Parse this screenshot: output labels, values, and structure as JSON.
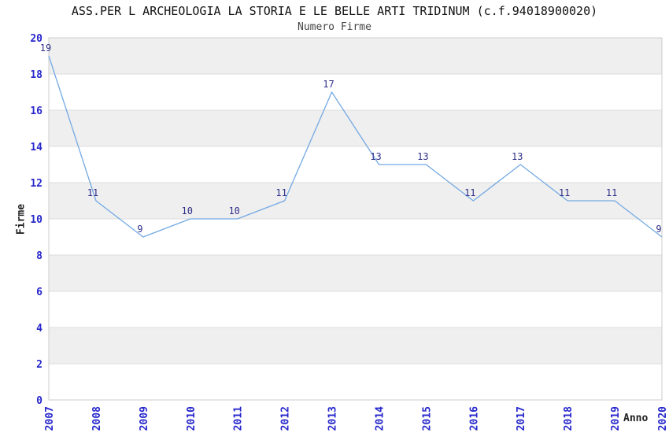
{
  "chart_data": {
    "type": "line",
    "title": "ASS.PER L ARCHEOLOGIA LA STORIA E LE BELLE ARTI TRIDINUM (c.f.94018900020)",
    "subtitle": "Numero Firme",
    "xlabel": "Anno",
    "ylabel": "Firme",
    "categories": [
      "2007",
      "2008",
      "2009",
      "2010",
      "2011",
      "2012",
      "2013",
      "2014",
      "2015",
      "2016",
      "2017",
      "2018",
      "2019",
      "2020"
    ],
    "values": [
      19,
      11,
      9,
      10,
      10,
      11,
      17,
      13,
      13,
      11,
      13,
      11,
      11,
      9
    ],
    "ylim": [
      0,
      20
    ],
    "ytick_step": 2,
    "grid": "horizontal-bands-alternating",
    "legend": "none",
    "colors": {
      "line": "#74a9e3",
      "band_gray": "#efefef",
      "band_white": "#ffffff",
      "grid_line": "#dddddd",
      "plot_border": "#cccccc",
      "tick_label": "#2727cc",
      "data_label": "#30308a",
      "title": "#111111",
      "subtitle": "#444444",
      "axis_title": "#222222"
    }
  }
}
